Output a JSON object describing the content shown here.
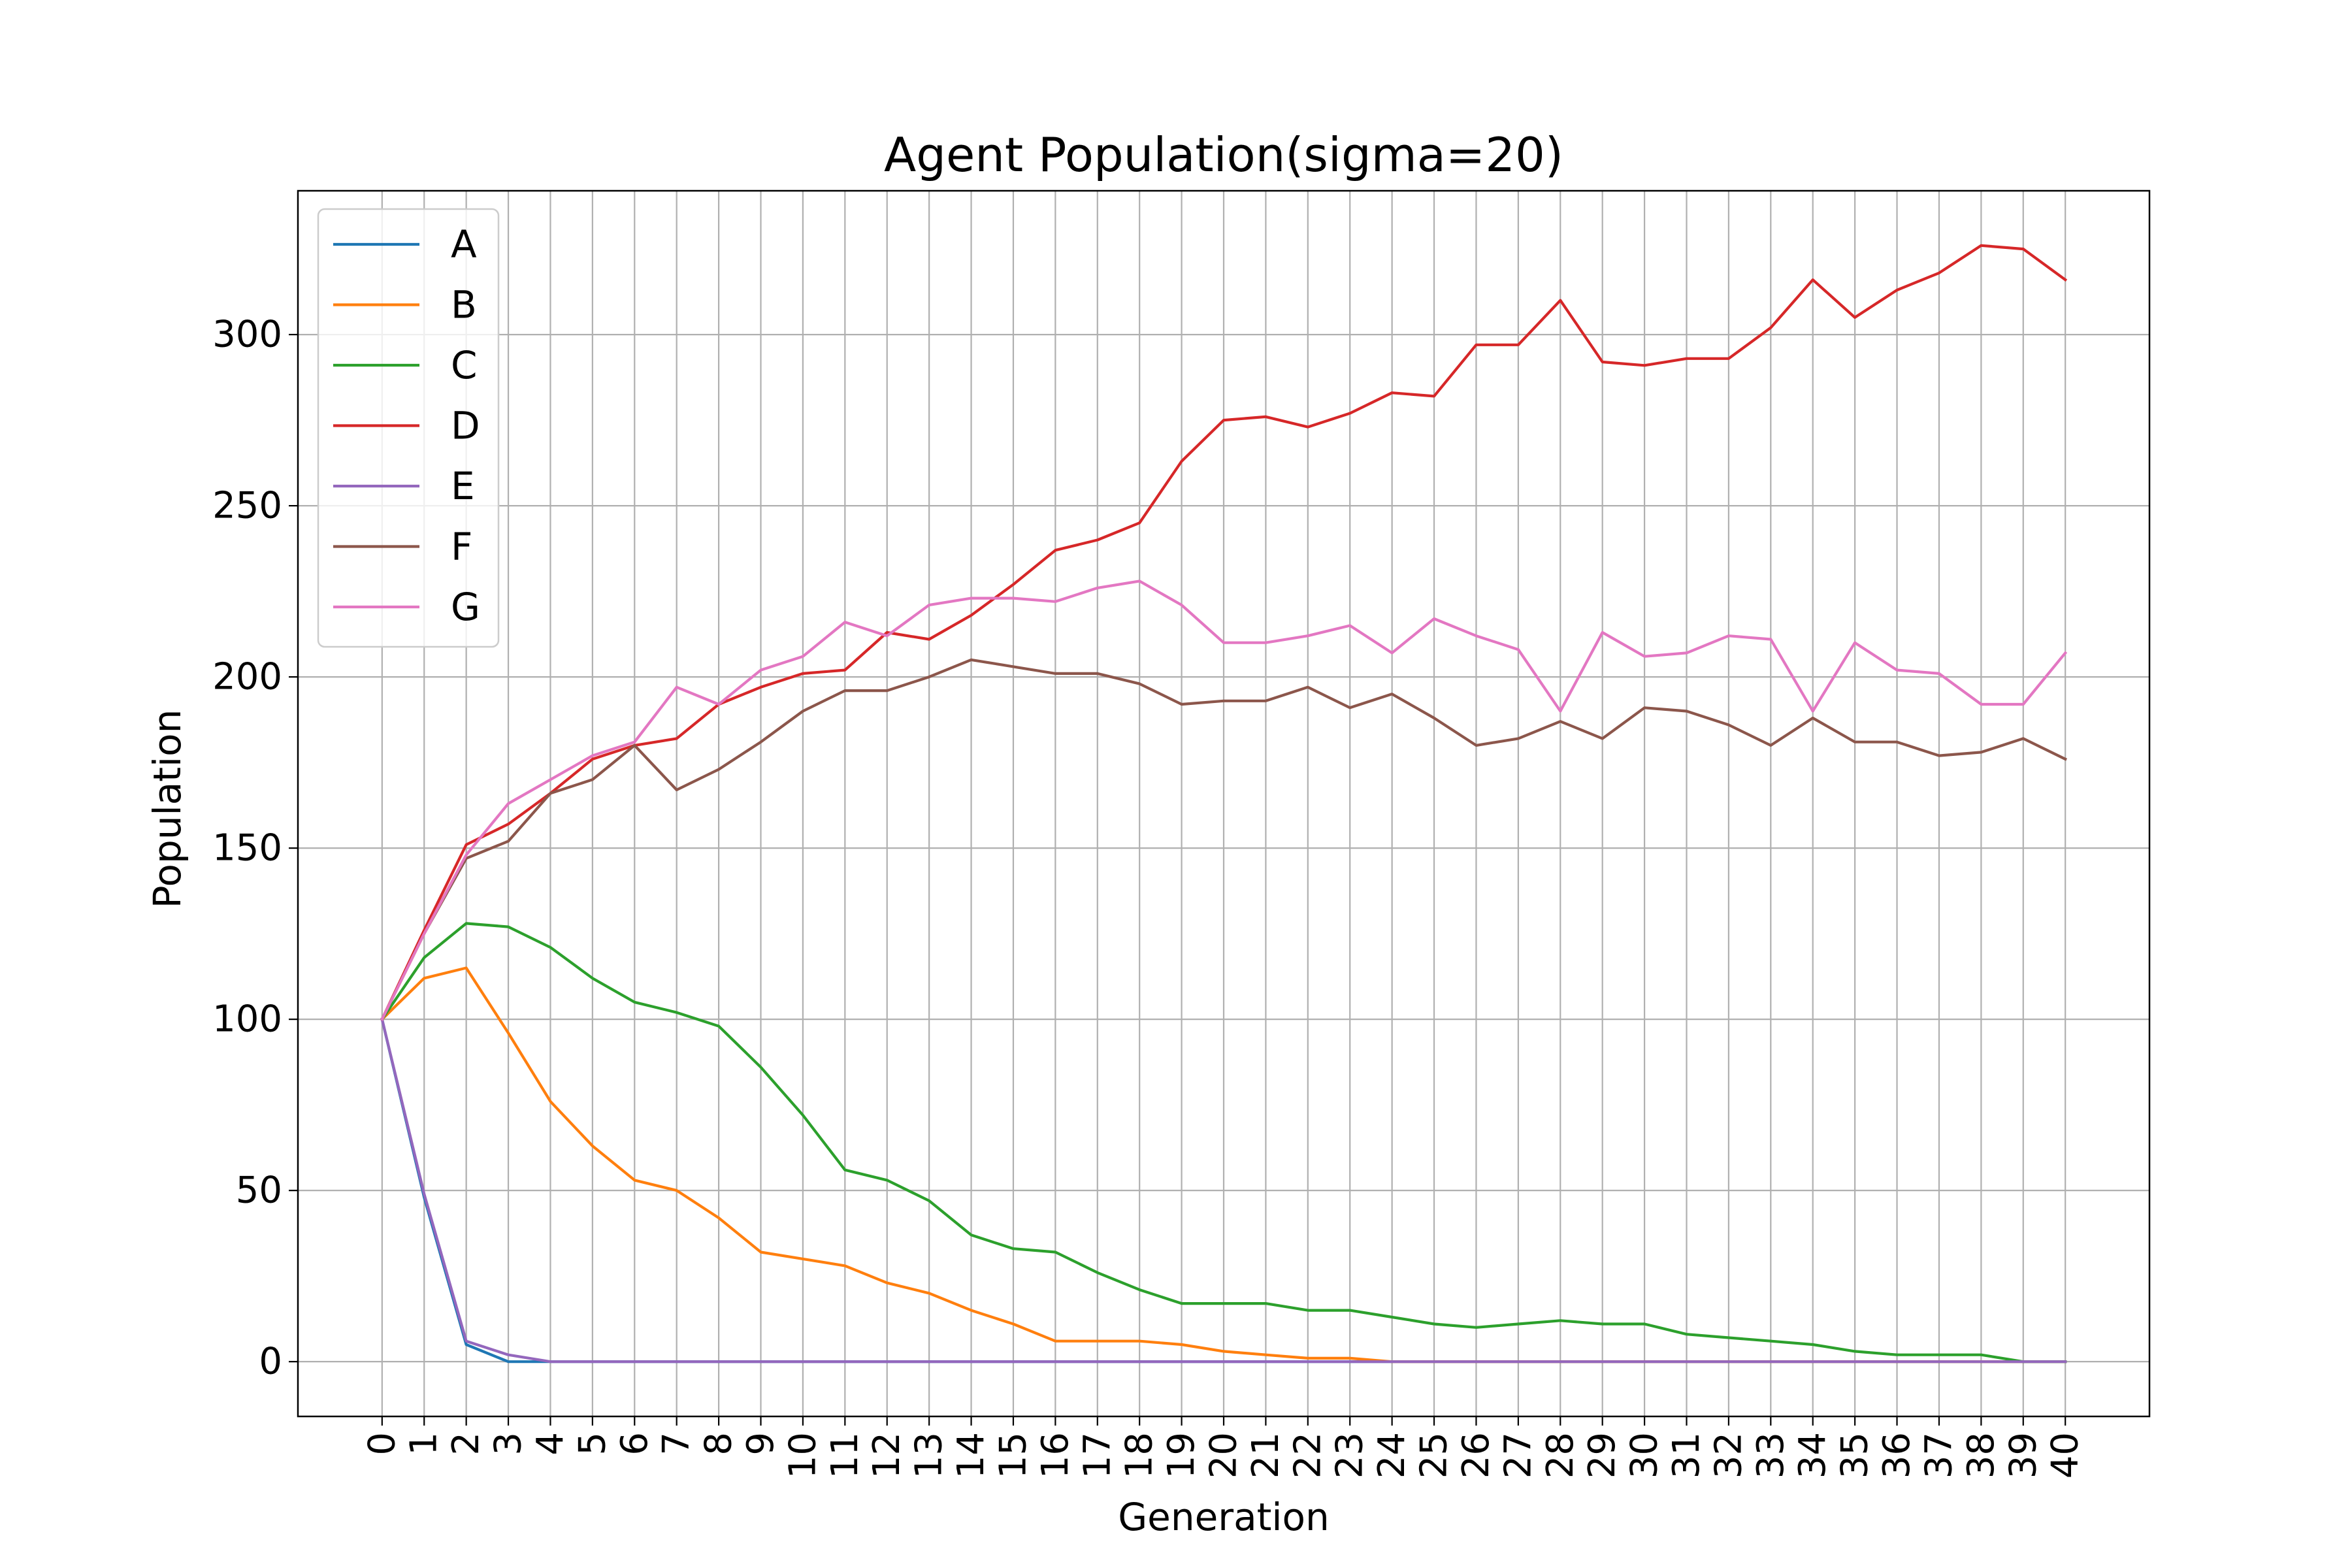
{
  "chart_data": {
    "type": "line",
    "title": "Agent Population(sigma=20)",
    "xlabel": "Generation",
    "ylabel": "Population",
    "x": [
      0,
      1,
      2,
      3,
      4,
      5,
      6,
      7,
      8,
      9,
      10,
      11,
      12,
      13,
      14,
      15,
      16,
      17,
      18,
      19,
      20,
      21,
      22,
      23,
      24,
      25,
      26,
      27,
      28,
      29,
      30,
      31,
      32,
      33,
      34,
      35,
      36,
      37,
      38,
      39,
      40
    ],
    "xlim": [
      -2,
      42
    ],
    "ylim": [
      -16,
      342
    ],
    "yticks": [
      0,
      50,
      100,
      150,
      200,
      250,
      300
    ],
    "grid": true,
    "legend_position": "top-left",
    "series": [
      {
        "name": "A",
        "color": "#1f77b4",
        "values": [
          100,
          48,
          5,
          0,
          0,
          0,
          0,
          0,
          0,
          0,
          0,
          0,
          0,
          0,
          0,
          0,
          0,
          0,
          0,
          0,
          0,
          0,
          0,
          0,
          0,
          0,
          0,
          0,
          0,
          0,
          0,
          0,
          0,
          0,
          0,
          0,
          0,
          0,
          0,
          0,
          0
        ]
      },
      {
        "name": "B",
        "color": "#ff7f0e",
        "values": [
          100,
          112,
          115,
          96,
          76,
          63,
          53,
          50,
          42,
          32,
          30,
          28,
          23,
          20,
          15,
          11,
          6,
          6,
          6,
          5,
          3,
          2,
          1,
          1,
          0,
          0,
          0,
          0,
          0,
          0,
          0,
          0,
          0,
          0,
          0,
          0,
          0,
          0,
          0,
          0,
          0
        ]
      },
      {
        "name": "C",
        "color": "#2ca02c",
        "values": [
          100,
          118,
          128,
          127,
          121,
          112,
          105,
          102,
          98,
          86,
          72,
          56,
          53,
          47,
          37,
          33,
          32,
          26,
          21,
          17,
          17,
          17,
          15,
          15,
          13,
          11,
          10,
          11,
          12,
          11,
          11,
          8,
          7,
          6,
          5,
          3,
          2,
          2,
          2,
          0,
          0
        ]
      },
      {
        "name": "D",
        "color": "#d62728",
        "values": [
          100,
          126,
          151,
          157,
          166,
          176,
          180,
          182,
          192,
          197,
          201,
          202,
          213,
          211,
          218,
          227,
          237,
          240,
          245,
          263,
          275,
          276,
          273,
          277,
          283,
          282,
          297,
          297,
          310,
          292,
          291,
          293,
          293,
          302,
          316,
          305,
          313,
          318,
          326,
          325,
          316
        ]
      },
      {
        "name": "E",
        "color": "#9467bd",
        "values": [
          100,
          49,
          6,
          2,
          0,
          0,
          0,
          0,
          0,
          0,
          0,
          0,
          0,
          0,
          0,
          0,
          0,
          0,
          0,
          0,
          0,
          0,
          0,
          0,
          0,
          0,
          0,
          0,
          0,
          0,
          0,
          0,
          0,
          0,
          0,
          0,
          0,
          0,
          0,
          0,
          0
        ]
      },
      {
        "name": "F",
        "color": "#8c564b",
        "values": [
          100,
          125,
          147,
          152,
          166,
          170,
          180,
          167,
          173,
          181,
          190,
          196,
          196,
          200,
          205,
          203,
          201,
          201,
          198,
          192,
          193,
          193,
          197,
          191,
          195,
          188,
          180,
          182,
          187,
          182,
          191,
          190,
          186,
          180,
          188,
          181,
          181,
          177,
          178,
          182,
          176
        ]
      },
      {
        "name": "G",
        "color": "#e377c2",
        "values": [
          100,
          125,
          148,
          163,
          170,
          177,
          181,
          197,
          192,
          202,
          206,
          216,
          212,
          221,
          223,
          223,
          222,
          226,
          228,
          221,
          210,
          210,
          212,
          215,
          207,
          217,
          212,
          208,
          190,
          213,
          206,
          207,
          212,
          211,
          190,
          210,
          202,
          201,
          192,
          192,
          207
        ]
      }
    ]
  }
}
